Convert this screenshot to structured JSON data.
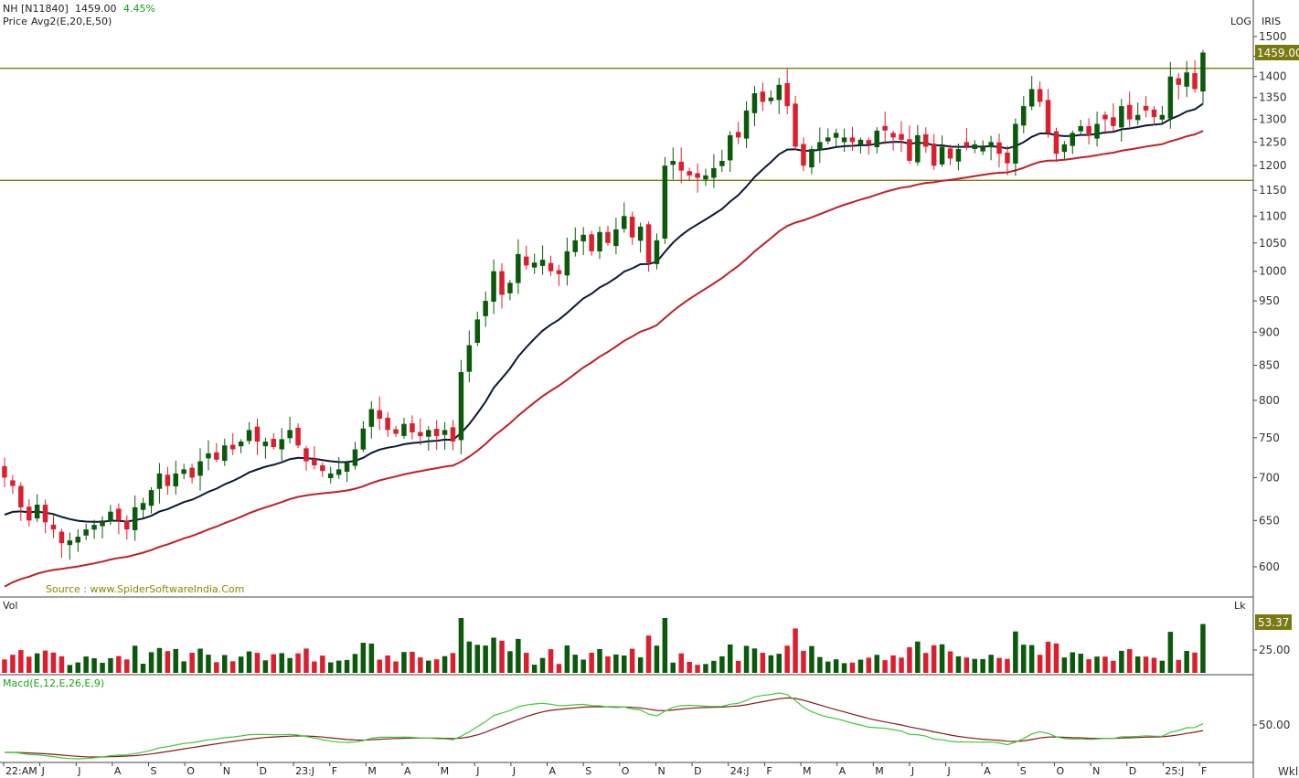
{
  "header": {
    "symbol": "NH [N11840]",
    "last_price": "1459.00",
    "change_pct": "4.45%",
    "indicator_label": "Price",
    "indicator_params": "Avg2(E,20,E,50)"
  },
  "price_panel": {
    "scale_mode": "LOG",
    "brand": "IRIS",
    "last_price_badge": "1459.00",
    "source_text": "Source : www.SpiderSoftwareIndia.Com"
  },
  "volume_panel": {
    "label": "Vol",
    "unit": "Lk",
    "last_badge": "53.37",
    "tick": "25.00"
  },
  "macd_panel": {
    "label": "Macd(E,12,E,26,E,9)",
    "tick": "50.00"
  },
  "timeframe": "Wkl",
  "colors": {
    "up": "#0b5a0b",
    "down": "#dd1e2f",
    "ema20": "#0b1a33",
    "ema50": "#c0202a",
    "macd": "#3fc93f",
    "signal": "#8b1a1a",
    "level": "#7a7a12",
    "badge": "#7a7a12"
  },
  "chart_data": {
    "type": "candlestick",
    "log_scale": true,
    "y_ticks": [
      600,
      650,
      700,
      750,
      800,
      850,
      900,
      950,
      1000,
      1050,
      1100,
      1150,
      1200,
      1250,
      1300,
      1350,
      1400,
      1450,
      1500
    ],
    "ylim": [
      570,
      1520
    ],
    "x_labels": [
      "22:AM",
      "J",
      "J",
      "A",
      "S",
      "O",
      "N",
      "D",
      "23:J",
      "F",
      "M",
      "A",
      "M",
      "J",
      "J",
      "A",
      "S",
      "O",
      "N",
      "D",
      "24:J",
      "F",
      "M",
      "A",
      "M",
      "J",
      "J",
      "A",
      "S",
      "O",
      "N",
      "D",
      "25:J",
      "F"
    ],
    "horizontal_levels": [
      1420,
      1170
    ],
    "closes": [
      700,
      690,
      665,
      650,
      668,
      648,
      640,
      625,
      628,
      632,
      640,
      645,
      650,
      660,
      650,
      640,
      665,
      670,
      685,
      705,
      690,
      705,
      710,
      700,
      720,
      730,
      722,
      740,
      735,
      745,
      760,
      745,
      745,
      738,
      748,
      760,
      740,
      720,
      715,
      708,
      705,
      710,
      718,
      735,
      762,
      788,
      775,
      760,
      755,
      768,
      757,
      752,
      760,
      752,
      760,
      745,
      840,
      880,
      920,
      950,
      1000,
      960,
      980,
      1030,
      1010,
      1015,
      1020,
      1000,
      995,
      1035,
      1055,
      1065,
      1035,
      1070,
      1050,
      1075,
      1100,
      1060,
      1080,
      1015,
      1055,
      1200,
      1210,
      1190,
      1180,
      1175,
      1180,
      1195,
      1210,
      1265,
      1260,
      1320,
      1360,
      1340,
      1350,
      1380,
      1330,
      1240,
      1200,
      1235,
      1250,
      1260,
      1270,
      1260,
      1250,
      1255,
      1245,
      1275,
      1275,
      1260,
      1255,
      1210,
      1265,
      1240,
      1200,
      1240,
      1215,
      1235,
      1240,
      1245,
      1240,
      1250,
      1225,
      1205,
      1290,
      1330,
      1370,
      1340,
      1270,
      1225,
      1245,
      1270,
      1285,
      1265,
      1290,
      1300,
      1285,
      1330,
      1300,
      1310,
      1320,
      1305,
      1310,
      1400,
      1380,
      1410,
      1370,
      1459
    ]
  }
}
